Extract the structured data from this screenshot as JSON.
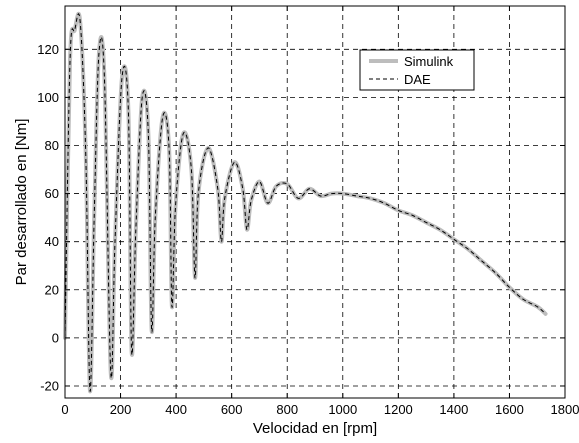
{
  "chart_data": {
    "type": "line",
    "title": "",
    "xlabel": "Velocidad en [rpm]",
    "ylabel": "Par desarrollado en [Nm]",
    "xlim": [
      0,
      1800
    ],
    "ylim": [
      -25,
      138
    ],
    "xticks": [
      0,
      200,
      400,
      600,
      800,
      1000,
      1200,
      1400,
      1600,
      1800
    ],
    "yticks": [
      -20,
      0,
      20,
      40,
      60,
      80,
      100,
      120
    ],
    "xtick_labels": [
      "0",
      "200",
      "400",
      "600",
      "800",
      "1000",
      "1200",
      "1400",
      "1600",
      "1800"
    ],
    "ytick_labels": [
      "-20",
      "0",
      "20",
      "40",
      "60",
      "80",
      "100",
      "120"
    ],
    "grid": true,
    "legend_position": "top-right",
    "series": [
      {
        "name": "Simulink",
        "color": "#bdbdbd",
        "style": "solid-thick",
        "x": [
          0,
          18,
          35,
          55,
          75,
          90,
          105,
          122,
          142,
          165,
          180,
          205,
          228,
          240,
          255,
          278,
          300,
          312,
          325,
          352,
          375,
          385,
          398,
          426,
          455,
          468,
          480,
          515,
          550,
          563,
          575,
          610,
          640,
          655,
          670,
          700,
          730,
          760,
          800,
          840,
          880,
          920,
          960,
          1000,
          1050,
          1100,
          1150,
          1200,
          1250,
          1300,
          1350,
          1400,
          1450,
          1500,
          1550,
          1600,
          1650,
          1700,
          1730
        ],
        "y": [
          0,
          115,
          128,
          131,
          75,
          -22,
          50,
          118,
          108,
          -15,
          40,
          108,
          95,
          -6,
          45,
          100,
          85,
          3,
          50,
          92,
          78,
          13,
          55,
          85,
          70,
          25,
          60,
          79,
          62,
          40,
          58,
          73,
          62,
          45,
          57,
          65,
          56,
          63,
          64,
          58,
          62,
          59,
          60,
          60,
          59,
          58,
          56,
          53,
          51,
          48,
          45,
          41,
          37,
          32,
          27,
          21,
          16,
          13,
          10
        ]
      },
      {
        "name": "DAE",
        "color": "#000000",
        "style": "dashed",
        "x": [
          0,
          18,
          35,
          55,
          75,
          90,
          105,
          122,
          142,
          165,
          180,
          205,
          228,
          240,
          255,
          278,
          300,
          312,
          325,
          352,
          375,
          385,
          398,
          426,
          455,
          468,
          480,
          515,
          550,
          563,
          575,
          610,
          640,
          655,
          670,
          700,
          730,
          760,
          800,
          840,
          880,
          920,
          960,
          1000,
          1050,
          1100,
          1150,
          1200,
          1250,
          1300,
          1350,
          1400,
          1450,
          1500,
          1550,
          1600,
          1650,
          1700,
          1730
        ],
        "y": [
          0,
          115,
          128,
          131,
          75,
          -22,
          50,
          118,
          108,
          -15,
          40,
          108,
          95,
          -6,
          45,
          100,
          85,
          3,
          50,
          92,
          78,
          13,
          55,
          85,
          70,
          25,
          60,
          79,
          62,
          40,
          58,
          73,
          62,
          45,
          57,
          65,
          56,
          63,
          64,
          58,
          62,
          59,
          60,
          60,
          59,
          58,
          56,
          53,
          51,
          48,
          45,
          41,
          37,
          32,
          27,
          21,
          16,
          13,
          10
        ]
      }
    ]
  }
}
